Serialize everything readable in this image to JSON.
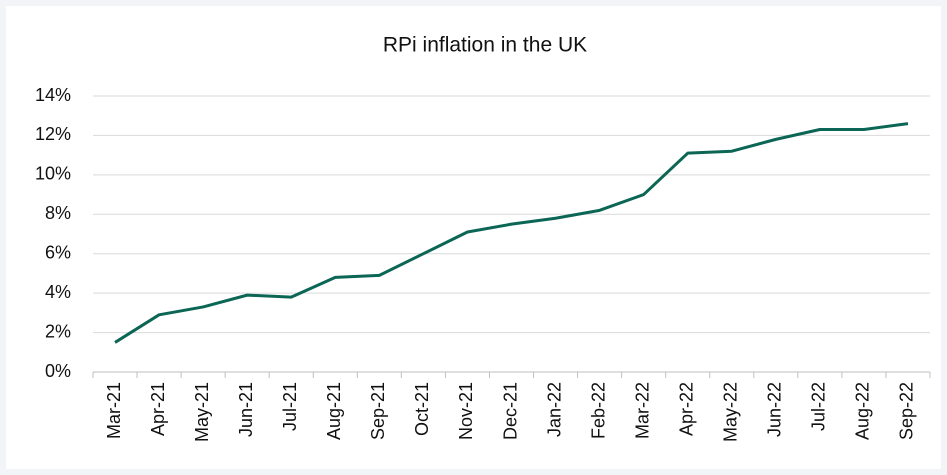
{
  "chart_data": {
    "type": "line",
    "title": "RPi inflation in the UK",
    "categories": [
      "Mar-21",
      "Apr-21",
      "May-21",
      "Jun-21",
      "Jul-21",
      "Aug-21",
      "Sep-21",
      "Oct-21",
      "Nov-21",
      "Dec-21",
      "Jan-22",
      "Feb-22",
      "Mar-22",
      "Apr-22",
      "May-22",
      "Jun-22",
      "Jul-22",
      "Aug-22",
      "Sep-22"
    ],
    "series": [
      {
        "name": "RPi",
        "color": "#0b6655",
        "values": [
          1.5,
          2.9,
          3.3,
          3.9,
          3.8,
          4.8,
          4.9,
          6.0,
          7.1,
          7.5,
          7.8,
          8.2,
          9.0,
          11.1,
          11.2,
          11.8,
          12.3,
          12.3,
          12.6
        ]
      }
    ],
    "ylim": [
      0,
      14
    ],
    "yticks": [
      {
        "value": 0,
        "label": "0%"
      },
      {
        "value": 2,
        "label": "2%"
      },
      {
        "value": 4,
        "label": "4%"
      },
      {
        "value": 6,
        "label": "6%"
      },
      {
        "value": 8,
        "label": "8%"
      },
      {
        "value": 10,
        "label": "10%"
      },
      {
        "value": 12,
        "label": "12%"
      },
      {
        "value": 14,
        "label": "14%"
      }
    ],
    "grid": true
  }
}
